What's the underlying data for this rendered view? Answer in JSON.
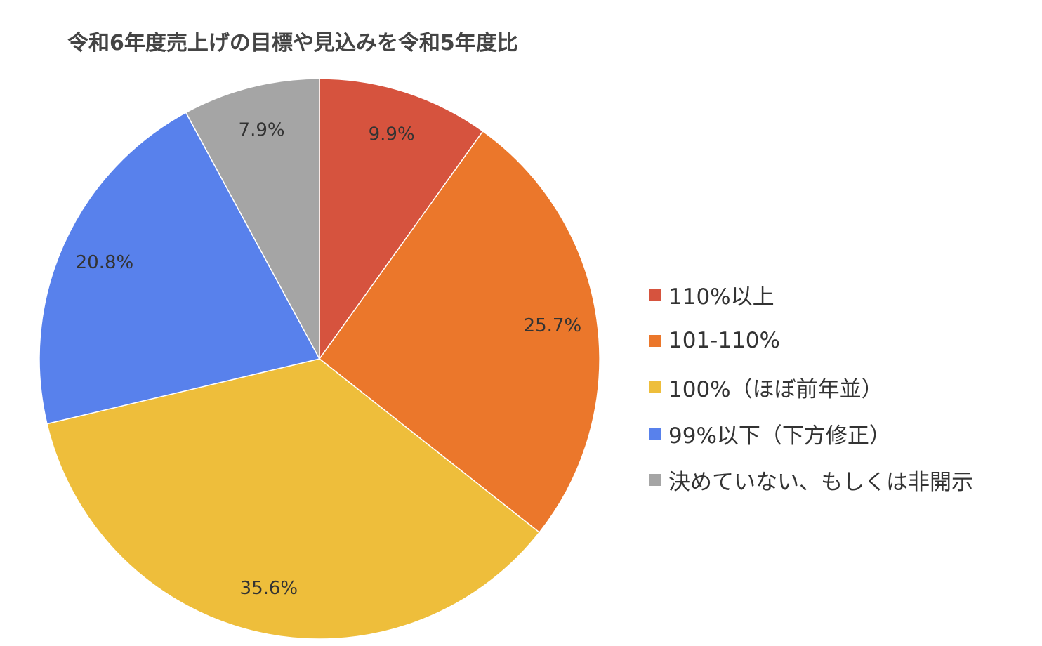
{
  "chart_data": {
    "type": "pie",
    "title": "令和6年度売上げの目標や見込みを令和5年度比",
    "slices": [
      {
        "label": "110%以上",
        "value": 9.9,
        "display": "9.9%",
        "color": "#d6533e"
      },
      {
        "label": "101-110%",
        "value": 25.7,
        "display": "25.7%",
        "color": "#eb772b"
      },
      {
        "label": "100%（ほぼ前年並）",
        "value": 35.6,
        "display": "35.6%",
        "color": "#eebe3b"
      },
      {
        "label": "99%以下（下方修正）",
        "value": 20.8,
        "display": "20.8%",
        "color": "#5881ec"
      },
      {
        "label": "決めていない、もしくは非開示",
        "value": 7.9,
        "display": "7.9%",
        "color": "#a5a5a5"
      }
    ],
    "legend_position": "right"
  }
}
